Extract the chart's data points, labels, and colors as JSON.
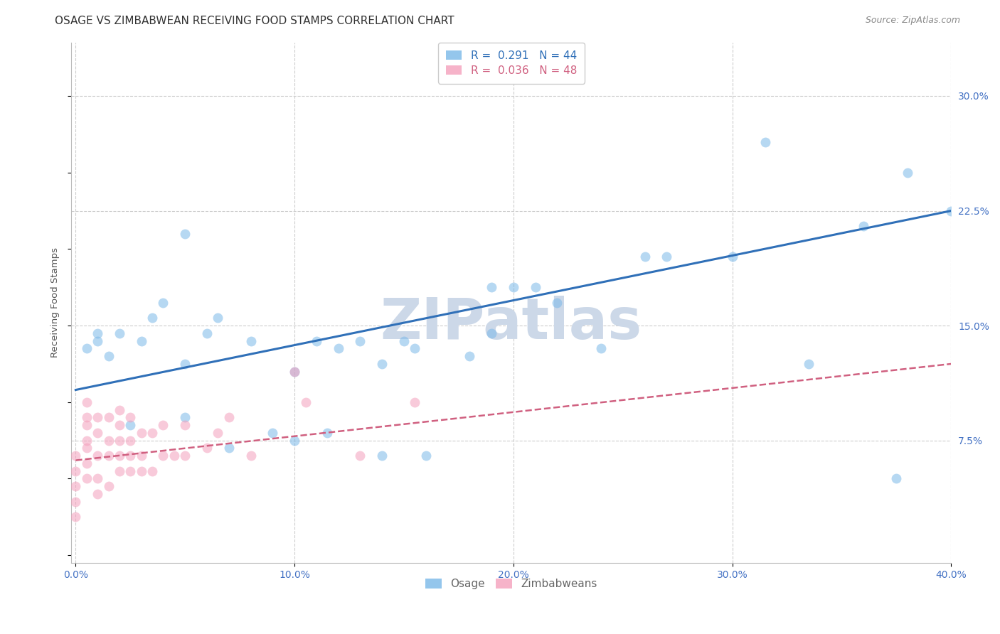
{
  "title": "OSAGE VS ZIMBABWEAN RECEIVING FOOD STAMPS CORRELATION CHART",
  "source": "Source: ZipAtlas.com",
  "ylabel": "Receiving Food Stamps",
  "ytick_labels": [
    "30.0%",
    "22.5%",
    "15.0%",
    "7.5%"
  ],
  "ytick_values": [
    0.3,
    0.225,
    0.15,
    0.075
  ],
  "xlim": [
    -0.002,
    0.4
  ],
  "ylim": [
    -0.005,
    0.335
  ],
  "background_color": "#ffffff",
  "grid_color": "#cccccc",
  "watermark_text": "ZIPatlas",
  "watermark_color": "#ccd8e8",
  "blue_color": "#7ab8e8",
  "pink_color": "#f4a0bc",
  "line_blue_color": "#3070b8",
  "line_pink_color": "#d06080",
  "osage_x": [
    0.005,
    0.01,
    0.01,
    0.015,
    0.02,
    0.025,
    0.03,
    0.035,
    0.04,
    0.05,
    0.05,
    0.06,
    0.065,
    0.07,
    0.08,
    0.09,
    0.1,
    0.1,
    0.11,
    0.115,
    0.12,
    0.13,
    0.14,
    0.14,
    0.15,
    0.155,
    0.16,
    0.18,
    0.19,
    0.2,
    0.21,
    0.22,
    0.24,
    0.27,
    0.3,
    0.315,
    0.335,
    0.36,
    0.375,
    0.05,
    0.26,
    0.19,
    0.38,
    0.4
  ],
  "osage_y": [
    0.135,
    0.145,
    0.14,
    0.13,
    0.145,
    0.085,
    0.14,
    0.155,
    0.165,
    0.09,
    0.125,
    0.145,
    0.155,
    0.07,
    0.14,
    0.08,
    0.12,
    0.075,
    0.14,
    0.08,
    0.135,
    0.14,
    0.125,
    0.065,
    0.14,
    0.135,
    0.065,
    0.13,
    0.145,
    0.175,
    0.175,
    0.165,
    0.135,
    0.195,
    0.195,
    0.27,
    0.125,
    0.215,
    0.05,
    0.21,
    0.195,
    0.175,
    0.25,
    0.225
  ],
  "zimbabwean_x": [
    0.0,
    0.0,
    0.0,
    0.0,
    0.0,
    0.005,
    0.005,
    0.005,
    0.005,
    0.005,
    0.005,
    0.005,
    0.01,
    0.01,
    0.01,
    0.01,
    0.01,
    0.015,
    0.015,
    0.015,
    0.015,
    0.02,
    0.02,
    0.02,
    0.02,
    0.02,
    0.025,
    0.025,
    0.025,
    0.025,
    0.03,
    0.03,
    0.03,
    0.035,
    0.035,
    0.04,
    0.04,
    0.045,
    0.05,
    0.05,
    0.06,
    0.065,
    0.07,
    0.08,
    0.1,
    0.105,
    0.13,
    0.155
  ],
  "zimbabwean_y": [
    0.025,
    0.035,
    0.045,
    0.055,
    0.065,
    0.05,
    0.06,
    0.07,
    0.075,
    0.085,
    0.09,
    0.1,
    0.04,
    0.05,
    0.065,
    0.08,
    0.09,
    0.045,
    0.065,
    0.075,
    0.09,
    0.055,
    0.065,
    0.075,
    0.085,
    0.095,
    0.055,
    0.065,
    0.075,
    0.09,
    0.055,
    0.065,
    0.08,
    0.055,
    0.08,
    0.065,
    0.085,
    0.065,
    0.065,
    0.085,
    0.07,
    0.08,
    0.09,
    0.065,
    0.12,
    0.1,
    0.065,
    0.1
  ],
  "osage_trendline_x": [
    0.0,
    0.4
  ],
  "osage_trendline_y": [
    0.108,
    0.225
  ],
  "zimbabwean_trendline_x": [
    0.0,
    0.4
  ],
  "zimbabwean_trendline_y": [
    0.062,
    0.125
  ],
  "xticks": [
    0.0,
    0.1,
    0.2,
    0.3,
    0.4
  ],
  "xticklabels": [
    "0.0%",
    "10.0%",
    "20.0%",
    "30.0%",
    "40.0%"
  ],
  "tick_color": "#4472c4",
  "marker_size": 100,
  "marker_alpha": 0.55,
  "title_fontsize": 11,
  "axis_label_fontsize": 9.5,
  "tick_fontsize": 10,
  "legend_fontsize": 11,
  "source_fontsize": 9,
  "legend_R_blue": "R =  0.291",
  "legend_N_blue": "N = 44",
  "legend_R_pink": "R =  0.036",
  "legend_N_pink": "N = 48",
  "legend_blue_label": "Osage",
  "legend_pink_label": "Zimbabweans"
}
